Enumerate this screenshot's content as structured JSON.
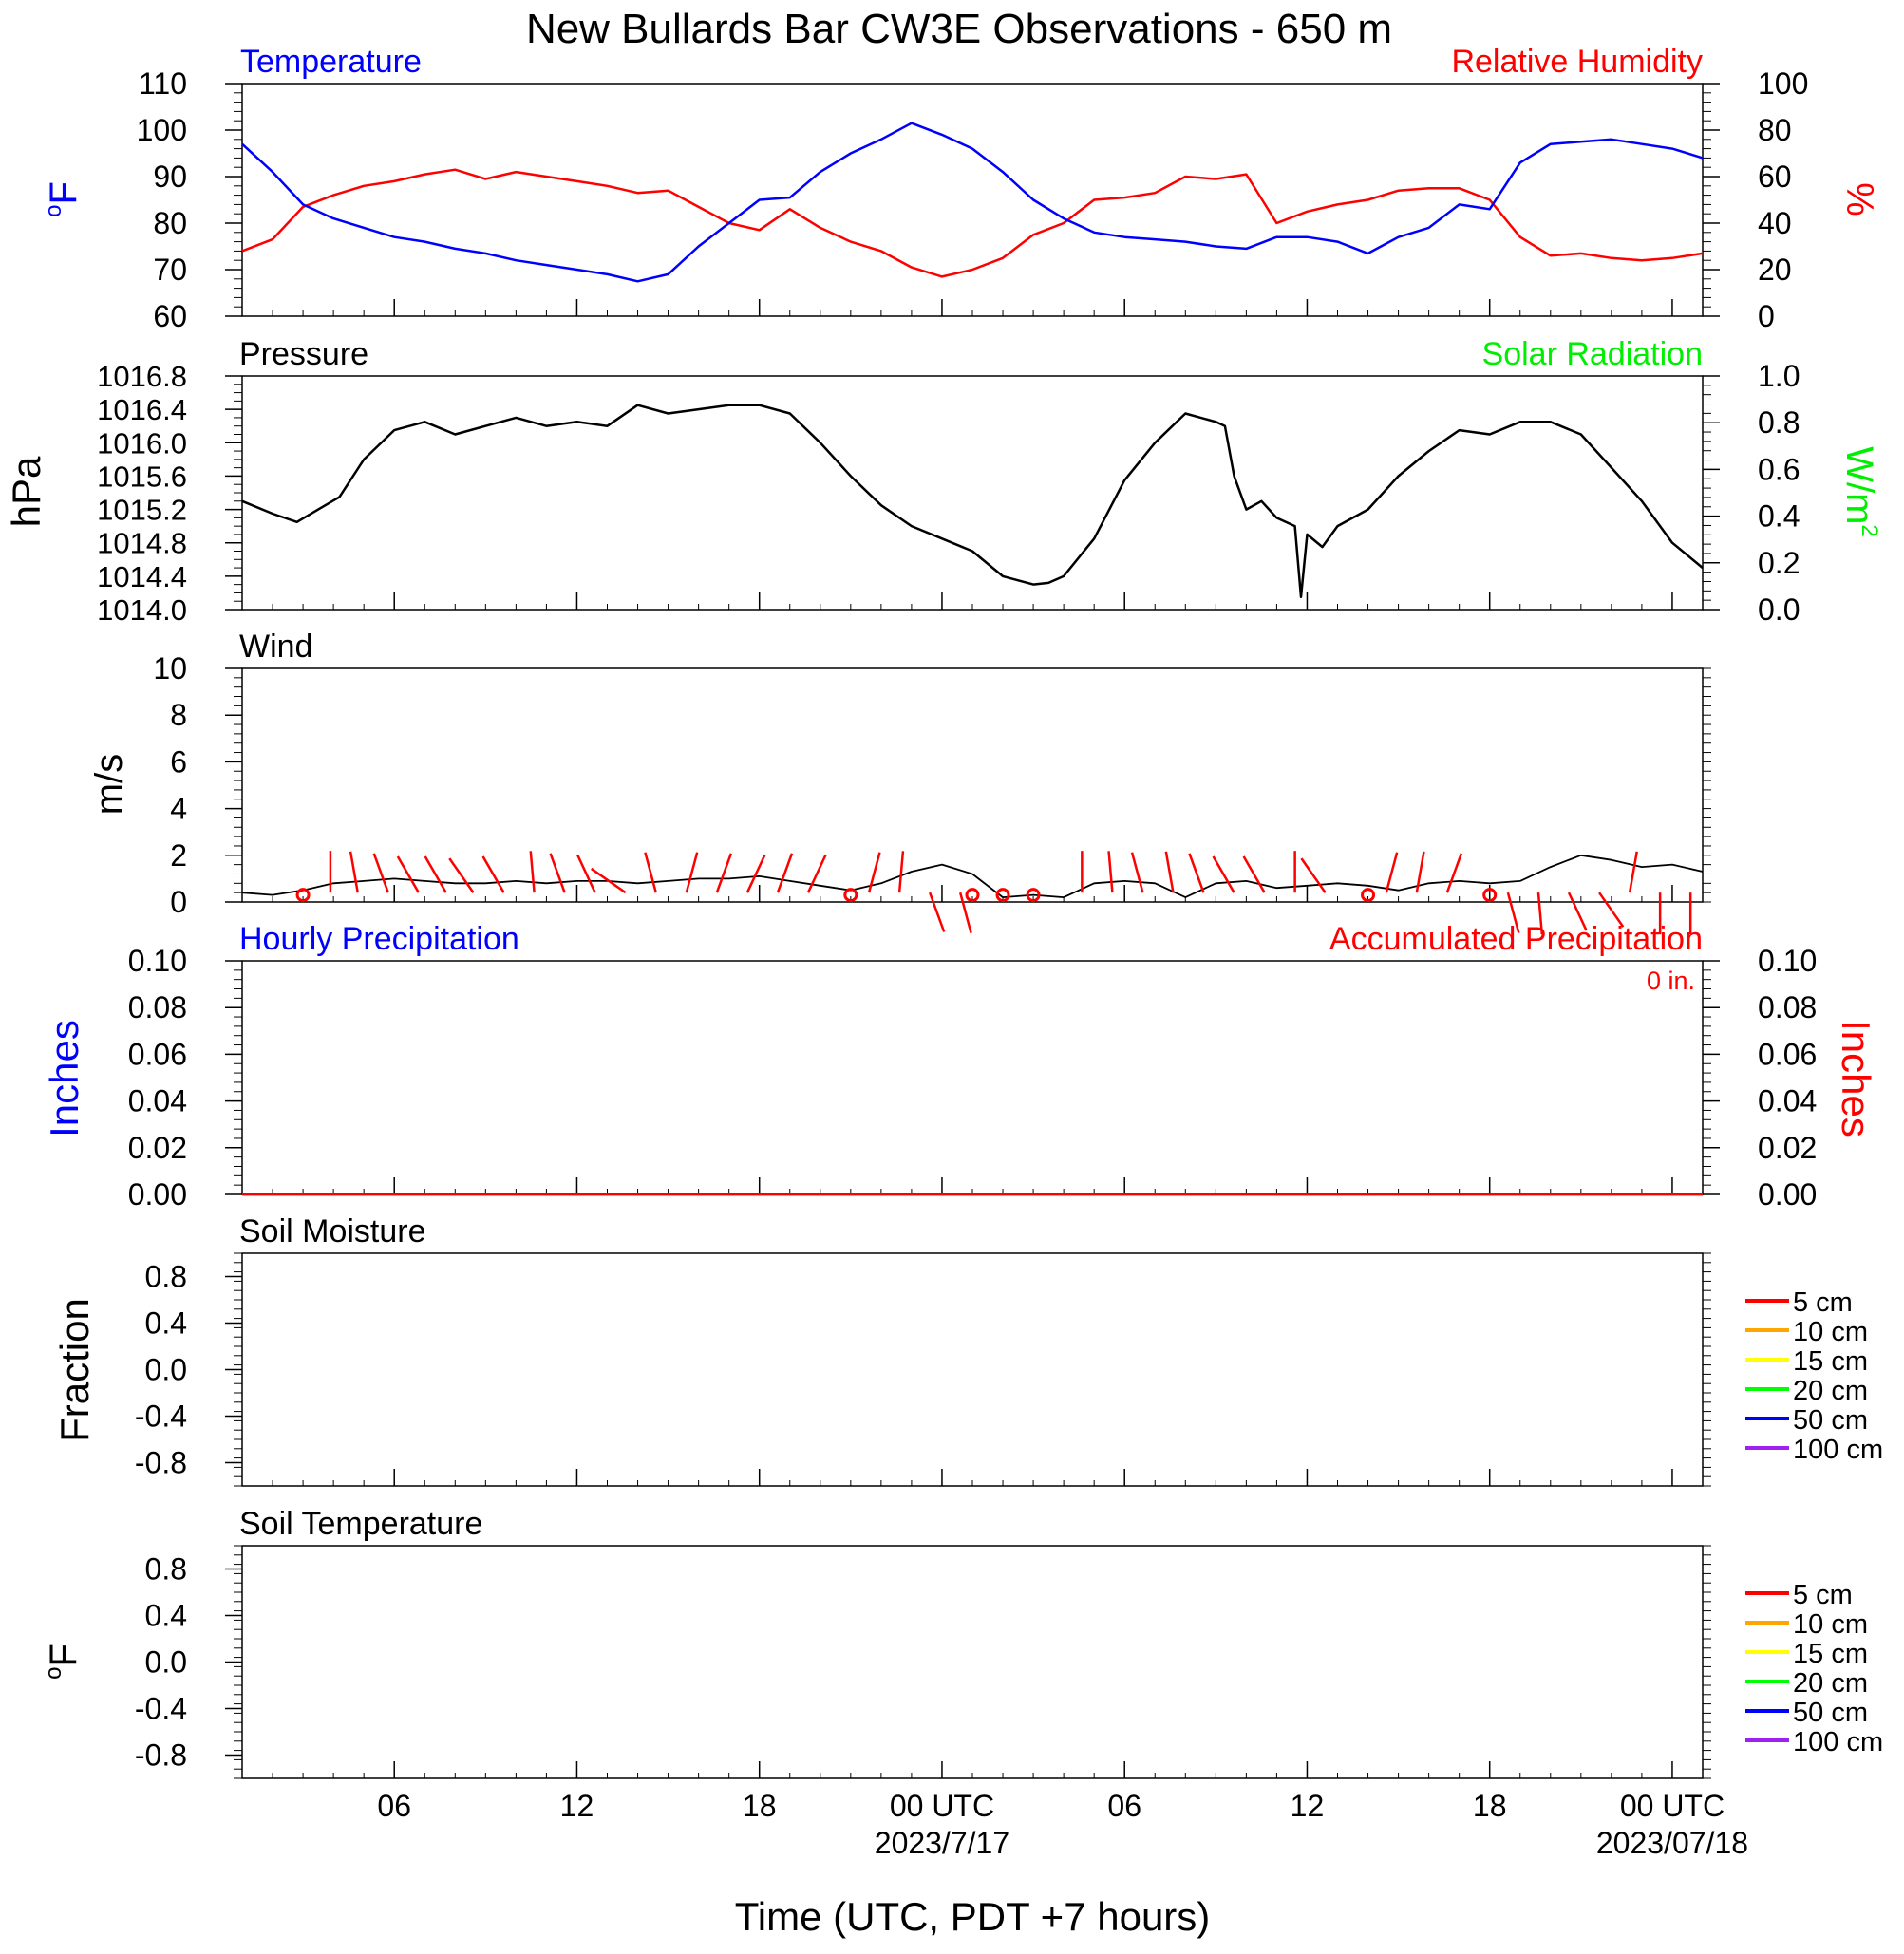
{
  "title": "New Bullards Bar CW3E Observations - 650 m",
  "xlabel": "Time (UTC, PDT +7 hours)",
  "x_ticks": [
    {
      "hour": 5,
      "label": "06",
      "date": ""
    },
    {
      "hour": 11,
      "label": "12",
      "date": ""
    },
    {
      "hour": 17,
      "label": "18",
      "date": ""
    },
    {
      "hour": 23,
      "label": "00 UTC",
      "date": "2023/7/17"
    },
    {
      "hour": 29,
      "label": "06",
      "date": ""
    },
    {
      "hour": 35,
      "label": "12",
      "date": ""
    },
    {
      "hour": 41,
      "label": "18",
      "date": ""
    },
    {
      "hour": 47,
      "label": "00 UTC",
      "date": "2023/07/18"
    }
  ],
  "x_range_hours": [
    0,
    48
  ],
  "colors": {
    "temperature": "#0000ff",
    "humidity": "#ff0000",
    "pressure": "#000000",
    "solar": "#00ee00",
    "wind": "#000000",
    "barb": "#ff0000"
  },
  "panels": {
    "temp_rh": {
      "left_title": "Temperature",
      "right_title": "Relative Humidity",
      "left_unit_base": "o",
      "left_unit_main": "F",
      "right_unit": "%"
    },
    "pressure": {
      "left_title": "Pressure",
      "right_title": "Solar Radiation",
      "left_unit": "hPa",
      "right_unit_base": "W/m",
      "right_unit_exp": "2"
    },
    "wind": {
      "left_title": "Wind",
      "left_unit": "m/s"
    },
    "precip": {
      "left_title": "Hourly Precipitation",
      "right_title": "Accumulated Precipitation",
      "accum_note": "0 in.",
      "left_unit": "Inches",
      "right_unit": "Inches"
    },
    "soil_moisture": {
      "left_title": "Soil Moisture",
      "left_unit": "Fraction",
      "legend": [
        "5 cm",
        "10 cm",
        "15 cm",
        "20 cm",
        "50 cm",
        "100 cm"
      ],
      "legend_colors": [
        "#ff0000",
        "#ffa500",
        "#ffff00",
        "#00ff00",
        "#0000ff",
        "#a020f0"
      ]
    },
    "soil_temp": {
      "left_title": "Soil Temperature",
      "left_unit_base": "o",
      "left_unit_main": "F",
      "legend": [
        "5 cm",
        "10 cm",
        "15 cm",
        "20 cm",
        "50 cm",
        "100 cm"
      ],
      "legend_colors": [
        "#ff0000",
        "#ffa500",
        "#ffff00",
        "#00ff00",
        "#0000ff",
        "#a020f0"
      ]
    }
  },
  "chart_data": [
    {
      "type": "line",
      "name": "temperature-humidity",
      "x_unit": "hours since start",
      "left_axis": {
        "ylim": [
          60,
          110
        ],
        "ticks": [
          "60",
          "70",
          "80",
          "90",
          "100",
          "110"
        ]
      },
      "right_axis": {
        "ylim": [
          0,
          100
        ],
        "ticks": [
          "0",
          "20",
          "40",
          "60",
          "80",
          "100"
        ]
      },
      "series": [
        {
          "name": "Temperature",
          "axis": "left",
          "x": [
            0,
            1,
            2,
            3,
            4,
            5,
            6,
            7,
            8,
            9,
            10,
            11,
            12,
            13,
            14,
            15,
            16,
            17,
            18,
            19,
            20,
            21,
            22,
            23,
            24,
            25,
            26,
            27,
            28,
            29,
            30,
            31,
            32,
            33,
            34,
            35,
            36,
            37,
            38,
            39,
            40,
            41,
            42,
            43,
            44,
            45,
            46,
            47,
            48
          ],
          "y": [
            97,
            91,
            84,
            81,
            79,
            77,
            76,
            74.5,
            73.5,
            72,
            71,
            70,
            69,
            67.5,
            69,
            75,
            80,
            85,
            85.5,
            91,
            95,
            98,
            101.5,
            99,
            96,
            91,
            85,
            81,
            78,
            77,
            76.5,
            76,
            75,
            74.5,
            77,
            77,
            76,
            73.5,
            77,
            79,
            84,
            83,
            93,
            97,
            97.5,
            98,
            97,
            96,
            94
          ]
        },
        {
          "name": "Relative Humidity",
          "axis": "right",
          "x": [
            0,
            1,
            2,
            3,
            4,
            5,
            6,
            7,
            8,
            9,
            10,
            11,
            12,
            13,
            14,
            15,
            16,
            17,
            18,
            19,
            20,
            21,
            22,
            23,
            24,
            25,
            26,
            27,
            28,
            29,
            30,
            31,
            32,
            33,
            34,
            35,
            36,
            37,
            38,
            39,
            40,
            41,
            42,
            43,
            44,
            45,
            46,
            47,
            48
          ],
          "y": [
            28,
            33,
            47,
            52,
            56,
            58,
            61,
            63,
            59,
            62,
            60,
            58,
            56,
            53,
            54,
            47,
            40,
            37,
            46,
            38,
            32,
            28,
            21,
            17,
            20,
            25,
            35,
            40,
            50,
            51,
            53,
            60,
            59,
            61,
            40,
            45,
            48,
            50,
            54,
            55,
            55,
            50,
            34,
            26,
            27,
            25,
            24,
            25,
            27
          ]
        }
      ]
    },
    {
      "type": "line",
      "name": "pressure-solar",
      "x_unit": "hours since start",
      "left_axis": {
        "ylim": [
          1014.0,
          1016.8
        ],
        "ticks": [
          "1014.0",
          "1014.4",
          "1014.8",
          "1015.2",
          "1015.6",
          "1016.0",
          "1016.4",
          "1016.8"
        ]
      },
      "right_axis": {
        "ylim": [
          0.0,
          1.0
        ],
        "ticks": [
          "0.0",
          "0.2",
          "0.4",
          "0.6",
          "0.8",
          "1.0"
        ]
      },
      "series": [
        {
          "name": "Pressure",
          "axis": "left",
          "x": [
            0,
            1,
            1.8,
            2.5,
            3.2,
            4,
            5,
            6,
            7,
            8,
            9,
            10,
            11,
            12,
            13,
            14,
            15,
            16,
            17,
            18,
            19,
            20,
            21,
            22,
            23,
            24,
            25,
            26,
            26.5,
            27,
            28,
            29,
            30,
            31,
            32,
            32.3,
            32.6,
            33,
            33.5,
            34,
            34.6,
            34.8,
            35,
            35.5,
            36,
            37,
            38,
            39,
            40,
            41,
            42,
            43,
            44,
            45,
            46,
            47,
            48
          ],
          "y": [
            1015.3,
            1015.15,
            1015.05,
            1015.2,
            1015.35,
            1015.8,
            1016.15,
            1016.25,
            1016.1,
            1016.2,
            1016.3,
            1016.2,
            1016.25,
            1016.2,
            1016.45,
            1016.35,
            1016.4,
            1016.45,
            1016.45,
            1016.35,
            1016.0,
            1015.6,
            1015.25,
            1015.0,
            1014.85,
            1014.7,
            1014.4,
            1014.3,
            1014.32,
            1014.4,
            1014.85,
            1015.55,
            1016.0,
            1016.35,
            1016.25,
            1016.2,
            1015.6,
            1015.2,
            1015.3,
            1015.1,
            1015.0,
            1014.15,
            1014.9,
            1014.75,
            1015.0,
            1015.2,
            1015.6,
            1015.9,
            1016.15,
            1016.1,
            1016.25,
            1016.25,
            1016.1,
            1015.7,
            1015.3,
            1014.8,
            1014.5
          ]
        },
        {
          "name": "Solar Radiation",
          "axis": "right",
          "x": [],
          "y": []
        }
      ]
    },
    {
      "type": "line",
      "name": "wind",
      "x_unit": "hours since start",
      "ylim": [
        0,
        10
      ],
      "ticks": [
        "0",
        "2",
        "4",
        "6",
        "8",
        "10"
      ],
      "series": [
        {
          "name": "Wind",
          "x": [
            0,
            1,
            2,
            3,
            4,
            5,
            6,
            7,
            8,
            9,
            10,
            11,
            12,
            13,
            14,
            15,
            16,
            17,
            18,
            19,
            20,
            21,
            22,
            23,
            24,
            25,
            26,
            27,
            28,
            29,
            30,
            31,
            32,
            33,
            34,
            35,
            36,
            37,
            38,
            39,
            40,
            41,
            42,
            43,
            44,
            45,
            46,
            47,
            48
          ],
          "y": [
            0.4,
            0.3,
            0.5,
            0.8,
            0.9,
            1.0,
            0.9,
            0.8,
            0.8,
            0.9,
            0.8,
            0.9,
            0.9,
            0.8,
            0.9,
            1.0,
            1.0,
            1.1,
            0.9,
            0.7,
            0.5,
            0.8,
            1.3,
            1.6,
            1.2,
            0.2,
            0.3,
            0.2,
            0.8,
            0.9,
            0.8,
            0.2,
            0.8,
            0.9,
            0.6,
            0.7,
            0.8,
            0.7,
            0.5,
            0.8,
            0.9,
            0.8,
            0.9,
            1.5,
            2.0,
            1.8,
            1.5,
            1.6,
            1.3
          ]
        }
      ],
      "barbs_x": [
        1.8,
        2.9,
        3.8,
        4.8,
        5.8,
        6.7,
        7.6,
        8.6,
        9.6,
        10.6,
        11.6,
        12.6,
        13.6,
        14.6,
        15.6,
        16.6,
        17.6,
        18.6,
        19.6,
        20.6,
        21.6,
        22.6,
        23.6,
        24.6,
        25.6,
        26.6,
        27.6,
        28.6,
        29.6,
        30.6,
        31.6,
        32.6,
        33.6,
        34.6,
        35.6,
        36.6,
        37.6,
        38.6,
        39.6,
        40.6,
        41.6,
        42.6,
        43.6,
        44.6,
        45.6,
        46.6,
        47.6
      ],
      "barbs_angle": [
        null,
        0,
        -10,
        -20,
        -30,
        -30,
        -35,
        -30,
        -5,
        -20,
        -25,
        -55,
        -15,
        15,
        20,
        25,
        20,
        25,
        null,
        15,
        5,
        160,
        165,
        null,
        null,
        null,
        0,
        -5,
        -15,
        -10,
        -20,
        -30,
        -30,
        0,
        -35,
        null,
        15,
        10,
        20,
        null,
        165,
        175,
        155,
        145,
        10,
        180,
        180
      ],
      "calm_x": [
        2,
        20,
        24,
        25,
        26,
        37,
        41
      ]
    },
    {
      "type": "line",
      "name": "precipitation",
      "x_unit": "hours since start",
      "left_axis": {
        "ylim": [
          0.0,
          0.1
        ],
        "ticks": [
          "0.00",
          "0.02",
          "0.04",
          "0.06",
          "0.08",
          "0.10"
        ]
      },
      "right_axis": {
        "ylim": [
          0.0,
          0.1
        ],
        "ticks": [
          "0.00",
          "0.02",
          "0.04",
          "0.06",
          "0.08",
          "0.10"
        ]
      },
      "series": [
        {
          "name": "Hourly Precipitation",
          "axis": "left",
          "x": [
            0,
            48
          ],
          "y": [
            0,
            0
          ]
        },
        {
          "name": "Accumulated Precipitation",
          "axis": "right",
          "x": [
            0,
            48
          ],
          "y": [
            0,
            0
          ]
        }
      ]
    },
    {
      "type": "line",
      "name": "soil-moisture",
      "ylim": [
        -1,
        1
      ],
      "ticks": [
        "-0.8",
        "-0.4",
        "0.0",
        "0.4",
        "0.8"
      ],
      "tick_values": [
        -0.8,
        -0.4,
        0.0,
        0.4,
        0.8
      ],
      "series": []
    },
    {
      "type": "line",
      "name": "soil-temperature",
      "ylim": [
        -1,
        1
      ],
      "ticks": [
        "-0.8",
        "-0.4",
        "0.0",
        "0.4",
        "0.8"
      ],
      "tick_values": [
        -0.8,
        -0.4,
        0.0,
        0.4,
        0.8
      ],
      "series": []
    }
  ]
}
